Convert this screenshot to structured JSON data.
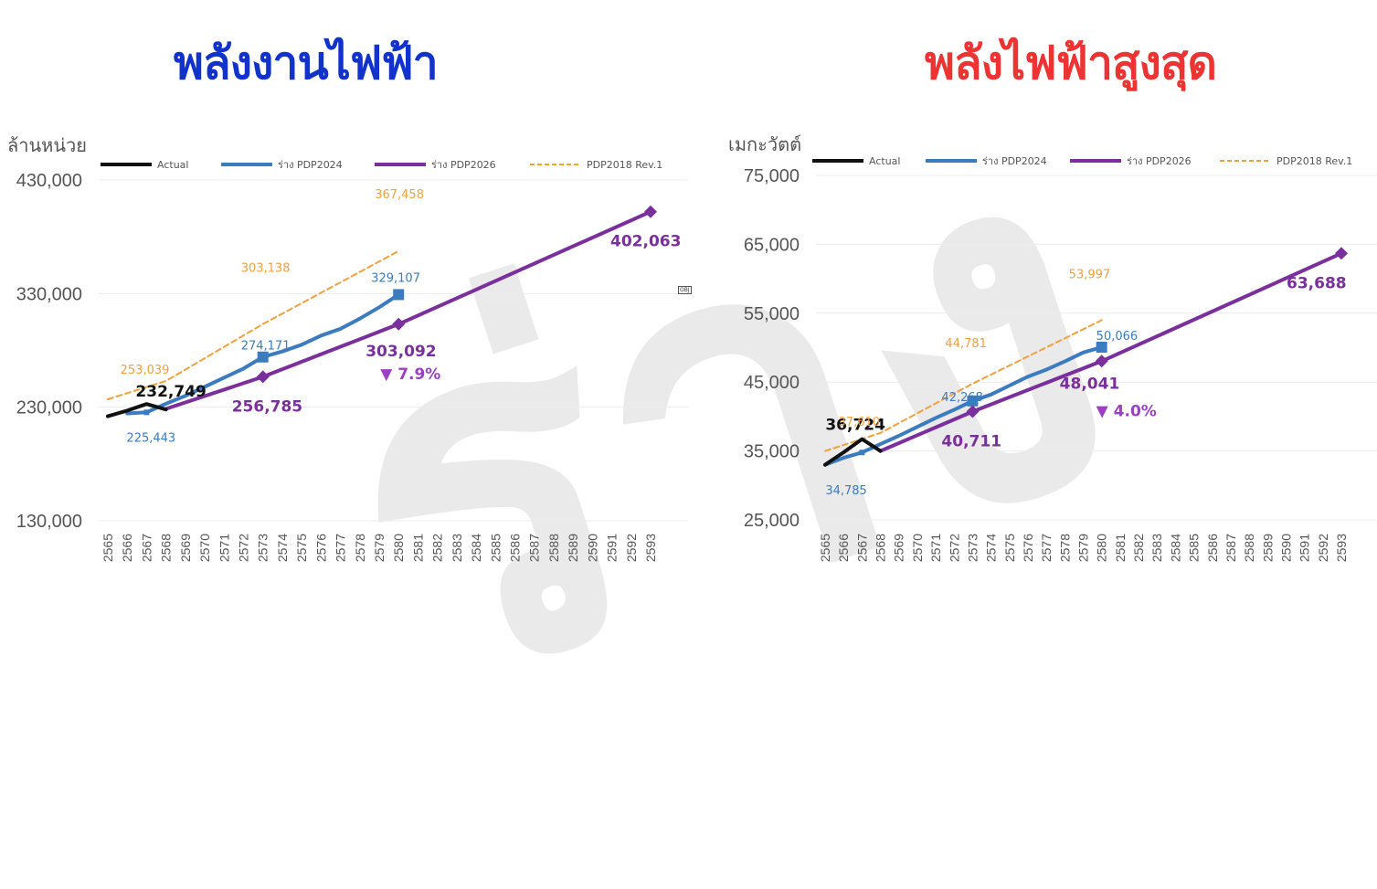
{
  "watermark": "ร่าง",
  "obj_marker": "OBJ",
  "chart_data": [
    {
      "type": "line",
      "title": "พลังงานไฟฟ้า",
      "title_color": "#1133cc",
      "ylabel": "ล้านหน่วย",
      "ylim": [
        130000,
        430000
      ],
      "yticks": [
        130000,
        230000,
        330000,
        430000
      ],
      "ytick_labels": [
        "130,000",
        "230,000",
        "330,000",
        "430,000"
      ],
      "categories": [
        "2565",
        "2566",
        "2567",
        "2568",
        "2569",
        "2570",
        "2571",
        "2572",
        "2573",
        "2574",
        "2575",
        "2576",
        "2577",
        "2578",
        "2579",
        "2580",
        "2581",
        "2582",
        "2583",
        "2584",
        "2585",
        "2586",
        "2587",
        "2588",
        "2589",
        "2590",
        "2591",
        "2592",
        "2593"
      ],
      "grid": true,
      "legend_position": "top",
      "legend": [
        "Actual",
        "ร่าง PDP2024",
        "ร่าง PDP2026",
        "PDP2018 Rev.1"
      ],
      "series": [
        {
          "name": "Actual",
          "color": "#111111",
          "style": "solid",
          "points": [
            [
              "2565",
              222000
            ],
            [
              "2566",
              227000
            ],
            [
              "2567",
              232749
            ],
            [
              "2568",
              228000
            ]
          ]
        },
        {
          "name": "ร่าง PDP2024",
          "color": "#3b7bbf",
          "style": "solid",
          "points": [
            [
              "2566",
              224500
            ],
            [
              "2567",
              225443
            ],
            [
              "2568",
              233000
            ],
            [
              "2569",
              240000
            ],
            [
              "2570",
              248000
            ],
            [
              "2571",
              256000
            ],
            [
              "2572",
              264000
            ],
            [
              "2573",
              274171
            ],
            [
              "2574",
              279000
            ],
            [
              "2575",
              285000
            ],
            [
              "2576",
              293000
            ],
            [
              "2577",
              299000
            ],
            [
              "2578",
              308000
            ],
            [
              "2579",
              318000
            ],
            [
              "2580",
              329107
            ]
          ]
        },
        {
          "name": "ร่าง PDP2026",
          "color": "#7a2f9c",
          "style": "solid",
          "points": [
            [
              "2568",
              228500
            ],
            [
              "2573",
              256785
            ],
            [
              "2580",
              303092
            ],
            [
              "2593",
              402063
            ]
          ]
        },
        {
          "name": "PDP2018 Rev.1",
          "color": "#f2a03c",
          "style": "dashed",
          "points": [
            [
              "2565",
              237000
            ],
            [
              "2568",
              253039
            ],
            [
              "2573",
              303138
            ],
            [
              "2580",
              367458
            ]
          ]
        }
      ],
      "annotations": [
        {
          "text": "232,749",
          "color": "#111111",
          "at": [
            "2567",
            232749
          ],
          "bold": true
        },
        {
          "text": "225,443",
          "color": "#3b7bbf",
          "at": [
            "2567",
            225443
          ]
        },
        {
          "text": "253,039",
          "color": "#f2a03c",
          "at": [
            "2568",
            253039
          ]
        },
        {
          "text": "274,171",
          "color": "#3b7bbf",
          "at": [
            "2573",
            274171
          ]
        },
        {
          "text": "303,138",
          "color": "#f2a03c",
          "at": [
            "2573",
            303138
          ]
        },
        {
          "text": "256,785",
          "color": "#7a2f9c",
          "at": [
            "2573",
            256785
          ],
          "bold": true
        },
        {
          "text": "329,107",
          "color": "#3b7bbf",
          "at": [
            "2580",
            329107
          ]
        },
        {
          "text": "367,458",
          "color": "#f2a03c",
          "at": [
            "2580",
            367458
          ]
        },
        {
          "text": "303,092",
          "color": "#7a2f9c",
          "at": [
            "2580",
            303092
          ],
          "bold": true
        },
        {
          "text": "▼ 7.9%",
          "color": "#9b3fc4",
          "at": [
            "2580",
            303092
          ],
          "bold": true
        },
        {
          "text": "402,063",
          "color": "#7a2f9c",
          "at": [
            "2593",
            402063
          ],
          "bold": true
        }
      ]
    },
    {
      "type": "line",
      "title": "พลังไฟฟ้าสูงสุด",
      "title_color": "#ee3333",
      "ylabel": "เมกะวัตต์",
      "ylim": [
        25000,
        75000
      ],
      "yticks": [
        25000,
        35000,
        45000,
        55000,
        65000,
        75000
      ],
      "ytick_labels": [
        "25,000",
        "35,000",
        "45,000",
        "55,000",
        "65,000",
        "75,000"
      ],
      "categories": [
        "2565",
        "2566",
        "2567",
        "2568",
        "2569",
        "2570",
        "2571",
        "2572",
        "2573",
        "2574",
        "2575",
        "2576",
        "2577",
        "2578",
        "2579",
        "2580",
        "2581",
        "2582",
        "2583",
        "2584",
        "2585",
        "2586",
        "2587",
        "2588",
        "2589",
        "2590",
        "2591",
        "2592",
        "2593"
      ],
      "grid": true,
      "legend_position": "top",
      "legend": [
        "Actual",
        "ร่าง PDP2024",
        "ร่าง PDP2026",
        "PDP2018 Rev.1"
      ],
      "series": [
        {
          "name": "Actual",
          "color": "#111111",
          "style": "solid",
          "points": [
            [
              "2565",
              33000
            ],
            [
              "2566",
              34800
            ],
            [
              "2567",
              36724
            ],
            [
              "2568",
              35000
            ]
          ]
        },
        {
          "name": "ร่าง PDP2024",
          "color": "#3b7bbf",
          "style": "solid",
          "points": [
            [
              "2565",
              33000
            ],
            [
              "2566",
              34000
            ],
            [
              "2567",
              34785
            ],
            [
              "2568",
              36000
            ],
            [
              "2569",
              37200
            ],
            [
              "2570",
              38500
            ],
            [
              "2571",
              39800
            ],
            [
              "2572",
              41000
            ],
            [
              "2573",
              42268
            ],
            [
              "2574",
              43200
            ],
            [
              "2575",
              44500
            ],
            [
              "2576",
              45800
            ],
            [
              "2577",
              46800
            ],
            [
              "2578",
              48000
            ],
            [
              "2579",
              49300
            ],
            [
              "2580",
              50066
            ]
          ]
        },
        {
          "name": "ร่าง PDP2026",
          "color": "#7a2f9c",
          "style": "solid",
          "points": [
            [
              "2568",
              35000
            ],
            [
              "2573",
              40711
            ],
            [
              "2580",
              48041
            ],
            [
              "2593",
              63688
            ]
          ]
        },
        {
          "name": "PDP2018 Rev.1",
          "color": "#f2a03c",
          "style": "dashed",
          "points": [
            [
              "2565",
              35000
            ],
            [
              "2568",
              37610
            ],
            [
              "2573",
              44781
            ],
            [
              "2580",
              53997
            ]
          ]
        }
      ],
      "annotations": [
        {
          "text": "36,724",
          "color": "#111111",
          "at": [
            "2567",
            36724
          ],
          "bold": true
        },
        {
          "text": "34,785",
          "color": "#3b7bbf",
          "at": [
            "2567",
            34785
          ]
        },
        {
          "text": "37,610",
          "color": "#f2a03c",
          "at": [
            "2568",
            37610
          ]
        },
        {
          "text": "42,268",
          "color": "#3b7bbf",
          "at": [
            "2573",
            42268
          ]
        },
        {
          "text": "44,781",
          "color": "#f2a03c",
          "at": [
            "2573",
            44781
          ]
        },
        {
          "text": "40,711",
          "color": "#7a2f9c",
          "at": [
            "2573",
            40711
          ],
          "bold": true
        },
        {
          "text": "50,066",
          "color": "#3b7bbf",
          "at": [
            "2580",
            50066
          ]
        },
        {
          "text": "53,997",
          "color": "#f2a03c",
          "at": [
            "2580",
            53997
          ]
        },
        {
          "text": "48,041",
          "color": "#7a2f9c",
          "at": [
            "2580",
            48041
          ],
          "bold": true
        },
        {
          "text": "▼ 4.0%",
          "color": "#9b3fc4",
          "at": [
            "2580",
            48041
          ],
          "bold": true
        },
        {
          "text": "63,688",
          "color": "#7a2f9c",
          "at": [
            "2593",
            63688
          ],
          "bold": true
        }
      ]
    }
  ]
}
